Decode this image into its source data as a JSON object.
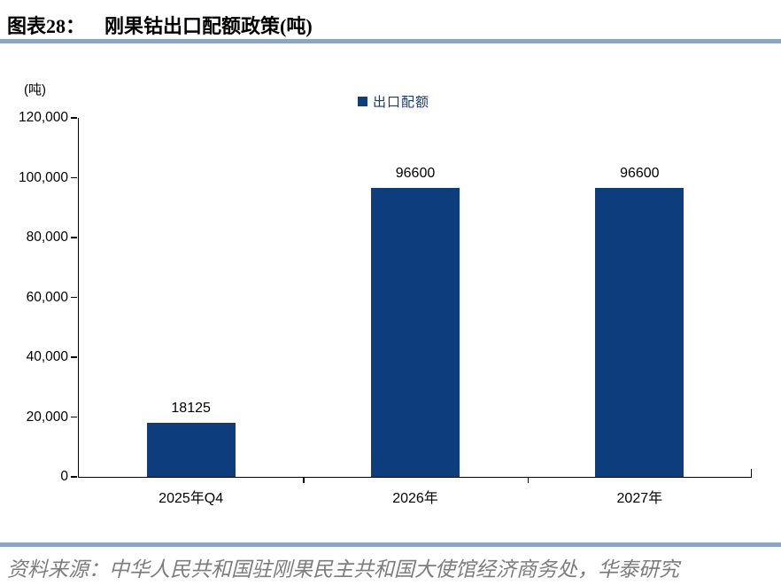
{
  "header": {
    "figure_label": "图表28：",
    "title": "刚果钴出口配额政策(吨)"
  },
  "chart_data": {
    "type": "bar",
    "title": "刚果钴出口配额政策(吨)",
    "unit_label": "(吨)",
    "legend": "出口配额",
    "legend_position": "top-center",
    "categories": [
      "2025年Q4",
      "2026年",
      "2027年"
    ],
    "values": [
      18125,
      96600,
      96600
    ],
    "data_labels": [
      "18125",
      "96600",
      "96600"
    ],
    "ylim": [
      0,
      120000
    ],
    "ytick_step": 20000,
    "ytick_labels": [
      "0",
      "20,000",
      "40,000",
      "60,000",
      "80,000",
      "100,000",
      "120,000"
    ],
    "grid": false,
    "bar_color": "#0d3d7c"
  },
  "footer": {
    "source": "资料来源：中华人民共和国驻刚果民主共和国大使馆经济商务处，华泰研究"
  },
  "colors": {
    "bar": "#0d3d7c",
    "divider": "#8da5c0",
    "legend_text": "#123c73",
    "source_text": "#7d7d7d"
  }
}
